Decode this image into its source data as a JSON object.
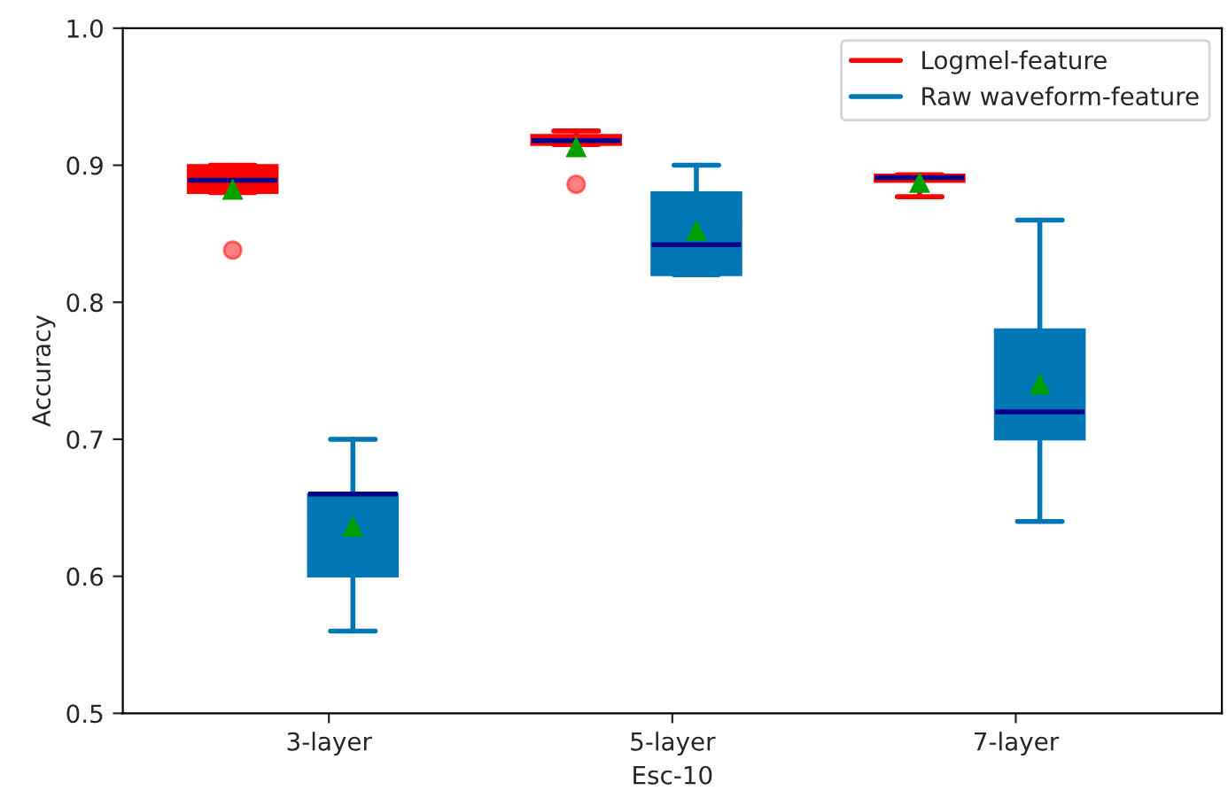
{
  "chart_data": {
    "type": "box",
    "xlabel": "Esc-10",
    "ylabel": "Accuracy",
    "categories": [
      "3-layer",
      "5-layer",
      "7-layer"
    ],
    "ylim": [
      0.5,
      1.0
    ],
    "yticks": [
      0.5,
      0.6,
      0.7,
      0.8,
      0.9,
      {
        "value": 1.0,
        "label": "1.0"
      }
    ],
    "grid": false,
    "legend": "top right",
    "series": [
      {
        "name": "Logmel-feature",
        "color": "#ff0000",
        "boxes": [
          {
            "low": 0.88,
            "q1": 0.88,
            "median": 0.889,
            "q3": 0.9,
            "high": 0.9,
            "mean": 0.882,
            "outliers": [
              0.838
            ]
          },
          {
            "low": 0.915,
            "q1": 0.915,
            "median": 0.918,
            "q3": 0.922,
            "high": 0.925,
            "mean": 0.913,
            "outliers": [
              0.886
            ]
          },
          {
            "low": 0.877,
            "q1": 0.888,
            "median": 0.891,
            "q3": 0.893,
            "high": 0.893,
            "mean": 0.887
          }
        ]
      },
      {
        "name": "Raw waveform-feature",
        "color": "#0077b5",
        "boxes": [
          {
            "low": 0.56,
            "q1": 0.6,
            "median": 0.66,
            "q3": 0.66,
            "high": 0.7,
            "mean": 0.636
          },
          {
            "low": 0.82,
            "q1": 0.82,
            "median": 0.842,
            "q3": 0.88,
            "high": 0.9,
            "mean": 0.852
          },
          {
            "low": 0.64,
            "q1": 0.7,
            "median": 0.72,
            "q3": 0.78,
            "high": 0.86,
            "mean": 0.74
          }
        ]
      }
    ]
  }
}
